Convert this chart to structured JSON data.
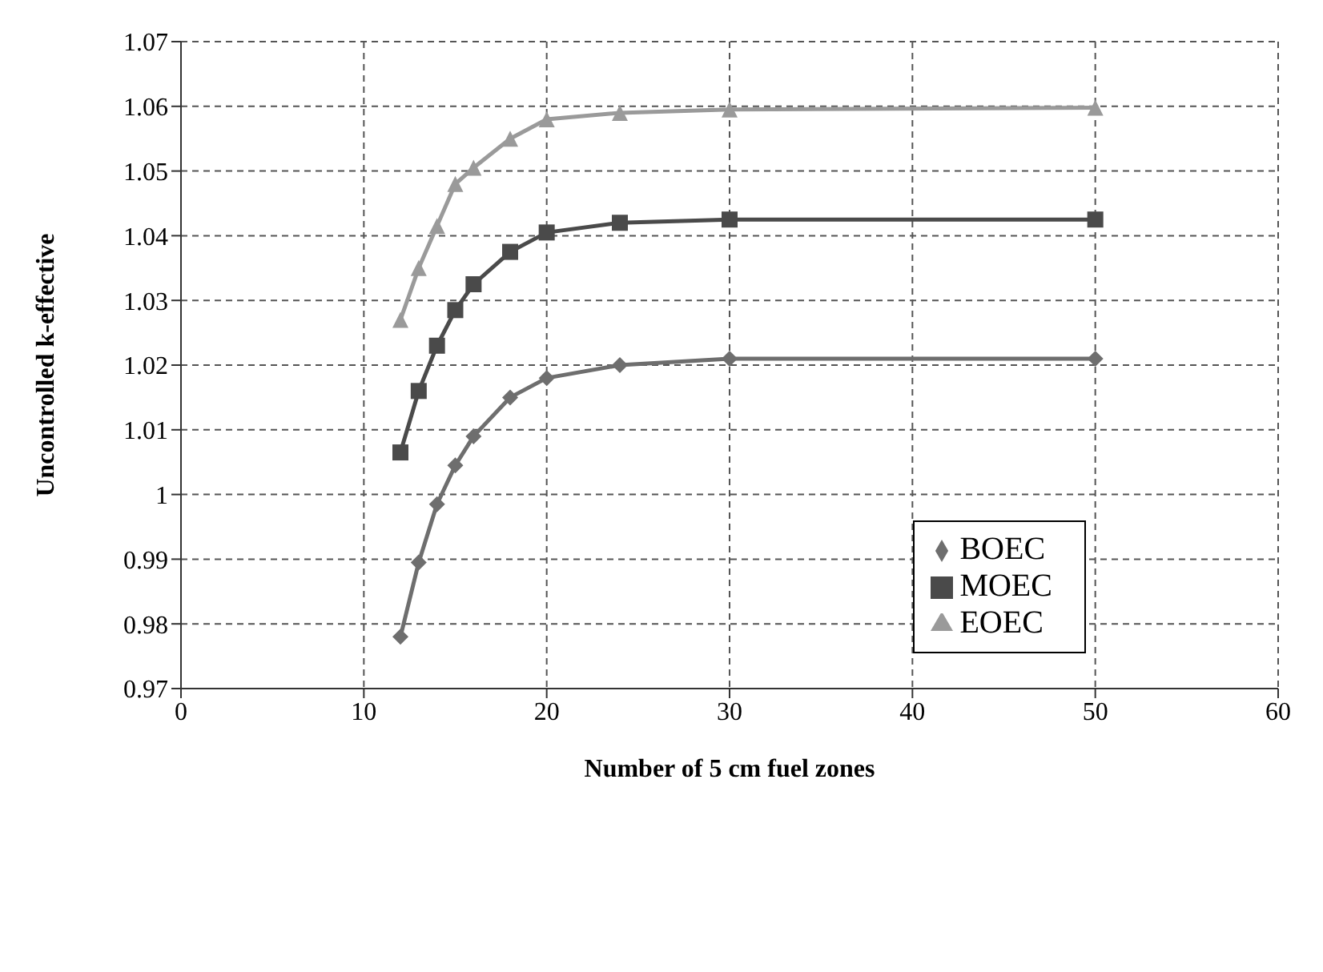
{
  "chart_data": {
    "type": "line",
    "xlabel": "Number of 5 cm fuel zones",
    "ylabel": "Uncontrolled k-effective",
    "x": [
      12,
      13,
      14,
      15,
      16,
      18,
      20,
      24,
      30,
      50
    ],
    "series": [
      {
        "name": "BOEC",
        "color": "#6e6e6e",
        "marker": "diamond",
        "values": [
          0.978,
          0.9895,
          0.9985,
          1.0045,
          1.009,
          1.015,
          1.018,
          1.02,
          1.021,
          1.021
        ]
      },
      {
        "name": "MOEC",
        "color": "#4a4a4a",
        "marker": "square",
        "values": [
          1.0065,
          1.016,
          1.023,
          1.0285,
          1.0325,
          1.0375,
          1.0405,
          1.042,
          1.0425,
          1.0425
        ]
      },
      {
        "name": "EOEC",
        "color": "#9a9a9a",
        "marker": "triangle",
        "values": [
          1.027,
          1.035,
          1.0415,
          1.048,
          1.0505,
          1.055,
          1.058,
          1.059,
          1.0595,
          1.0598
        ]
      }
    ],
    "xlim": [
      0,
      60
    ],
    "xticks": [
      0,
      10,
      20,
      30,
      40,
      50,
      60
    ],
    "ylim": [
      0.97,
      1.07
    ],
    "yticks": [
      0.97,
      0.98,
      0.99,
      1,
      1.01,
      1.02,
      1.03,
      1.04,
      1.05,
      1.06,
      1.07
    ],
    "grid": true,
    "legend": "bottom right",
    "line_style": "solid"
  }
}
